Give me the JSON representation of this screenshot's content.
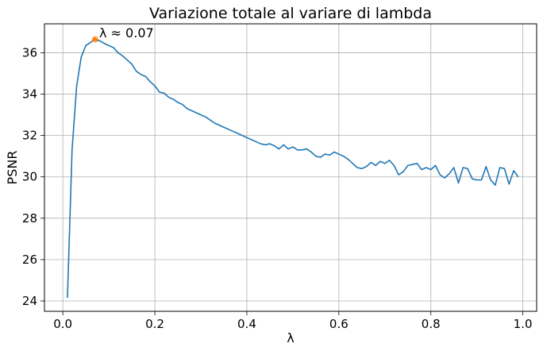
{
  "chart_data": {
    "type": "line",
    "title": "Variazione totale al variare di lambda",
    "xlabel": "λ",
    "ylabel": "PSNR",
    "xlim": [
      -0.04,
      1.03
    ],
    "ylim": [
      23.5,
      37.4
    ],
    "xticks": [
      0.0,
      0.2,
      0.4,
      0.6,
      0.8,
      1.0
    ],
    "xtick_labels": [
      "0.0",
      "0.2",
      "0.4",
      "0.6",
      "0.8",
      "1.0"
    ],
    "yticks": [
      24,
      26,
      28,
      30,
      32,
      34,
      36
    ],
    "ytick_labels": [
      "24",
      "26",
      "28",
      "30",
      "32",
      "34",
      "36"
    ],
    "grid": true,
    "line_color": "#1f77b4",
    "marker_color": "#ff7f0e",
    "annotation": {
      "text": "λ ≈ 0.07",
      "x": 0.07,
      "y": 36.65
    },
    "series": [
      {
        "x": [
          0.01,
          0.02,
          0.03,
          0.04,
          0.05,
          0.06,
          0.07,
          0.08,
          0.09,
          0.1,
          0.11,
          0.12,
          0.13,
          0.14,
          0.15,
          0.16,
          0.17,
          0.18,
          0.19,
          0.2,
          0.21,
          0.22,
          0.23,
          0.24,
          0.25,
          0.26,
          0.27,
          0.28,
          0.29,
          0.3,
          0.31,
          0.32,
          0.33,
          0.34,
          0.35,
          0.36,
          0.37,
          0.38,
          0.39,
          0.4,
          0.41,
          0.42,
          0.43,
          0.44,
          0.45,
          0.46,
          0.47,
          0.48,
          0.49,
          0.5,
          0.51,
          0.52,
          0.53,
          0.54,
          0.55,
          0.56,
          0.57,
          0.58,
          0.59,
          0.6,
          0.61,
          0.62,
          0.63,
          0.64,
          0.65,
          0.66,
          0.67,
          0.68,
          0.69,
          0.7,
          0.71,
          0.72,
          0.73,
          0.74,
          0.75,
          0.76,
          0.77,
          0.78,
          0.79,
          0.8,
          0.81,
          0.82,
          0.83,
          0.84,
          0.85,
          0.86,
          0.87,
          0.88,
          0.89,
          0.9,
          0.91,
          0.92,
          0.93,
          0.94,
          0.95,
          0.96,
          0.97,
          0.98,
          0.99
        ],
        "y": [
          24.15,
          31.3,
          34.4,
          35.8,
          36.35,
          36.5,
          36.65,
          36.58,
          36.45,
          36.35,
          36.25,
          36.0,
          35.85,
          35.65,
          35.45,
          35.1,
          34.95,
          34.85,
          34.6,
          34.4,
          34.1,
          34.05,
          33.85,
          33.75,
          33.6,
          33.5,
          33.3,
          33.2,
          33.1,
          33.0,
          32.9,
          32.75,
          32.6,
          32.5,
          32.4,
          32.3,
          32.2,
          32.1,
          32.0,
          31.9,
          31.8,
          31.7,
          31.6,
          31.55,
          31.6,
          31.5,
          31.35,
          31.55,
          31.35,
          31.45,
          31.3,
          31.3,
          31.35,
          31.2,
          31.0,
          30.95,
          31.1,
          31.05,
          31.2,
          31.1,
          31.0,
          30.85,
          30.65,
          30.45,
          30.4,
          30.5,
          30.7,
          30.55,
          30.75,
          30.65,
          30.8,
          30.55,
          30.1,
          30.25,
          30.55,
          30.6,
          30.65,
          30.35,
          30.45,
          30.35,
          30.55,
          30.1,
          29.95,
          30.15,
          30.45,
          29.7,
          30.45,
          30.4,
          29.9,
          29.85,
          29.85,
          30.5,
          29.85,
          29.6,
          30.45,
          30.4,
          29.65,
          30.3,
          30.0
        ]
      }
    ]
  }
}
